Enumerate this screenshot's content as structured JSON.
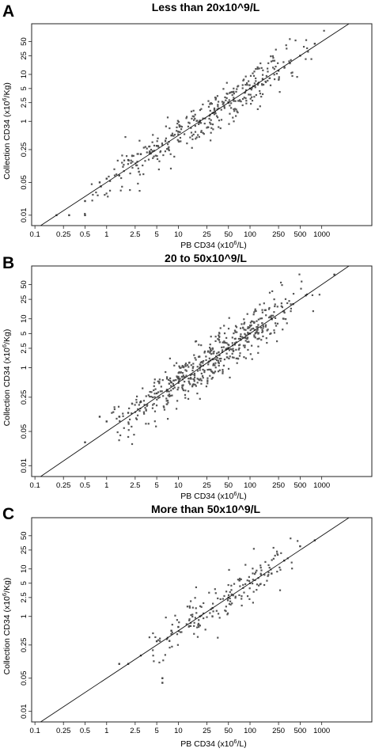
{
  "figure": {
    "panels": [
      {
        "letter": "A",
        "title": "Less than 20x10^9/L"
      },
      {
        "letter": "B",
        "title": "20 to 50x10^9/L"
      },
      {
        "letter": "C",
        "title": "More than 50x10^9/L"
      }
    ]
  },
  "chart_data": [
    {
      "type": "scatter",
      "title": "Less than 20x10^9/L",
      "xlabel": "PB CD34 (x10^6/L)",
      "ylabel": "Collection CD34 (x10^6/Kg)",
      "x_scale": "log",
      "y_scale": "log",
      "xlim": [
        0.09,
        5000
      ],
      "ylim": [
        0.006,
        120
      ],
      "x_ticks": [
        "0.1",
        "0.25",
        "0.5",
        "1",
        "2.5",
        "5",
        "10",
        "25",
        "50",
        "100",
        "250",
        "500",
        "1000"
      ],
      "y_ticks": [
        "0.01",
        "0.05",
        "0.25",
        "1",
        "2.5",
        "5",
        "10",
        "25",
        "50"
      ],
      "fit_line": {
        "intercept": 0.05,
        "slope": 1.0
      },
      "point_summary": {
        "approx_count": 380,
        "points_visible": true
      },
      "points": [
        [
          0.2,
          0.01
        ],
        [
          0.3,
          0.01
        ],
        [
          0.5,
          0.01
        ],
        [
          0.5,
          0.02
        ],
        [
          0.8,
          0.05
        ],
        [
          1,
          0.06
        ],
        [
          1.5,
          0.07
        ],
        [
          2,
          0.15
        ],
        [
          3,
          0.2
        ],
        [
          5,
          0.3
        ],
        [
          8,
          0.5
        ],
        [
          10,
          0.6
        ],
        [
          20,
          1
        ],
        [
          30,
          1.5
        ],
        [
          50,
          2.5
        ],
        [
          100,
          5
        ],
        [
          150,
          8
        ],
        [
          250,
          12
        ],
        [
          500,
          25
        ],
        [
          800,
          45
        ]
      ]
    },
    {
      "type": "scatter",
      "title": "20 to 50x10^9/L",
      "xlabel": "PB CD34 (x10^6/L)",
      "ylabel": "Collection CD34 (x10^6/Kg)",
      "x_scale": "log",
      "y_scale": "log",
      "xlim": [
        0.09,
        5000
      ],
      "ylim": [
        0.006,
        120
      ],
      "x_ticks": [
        "0.1",
        "0.25",
        "0.5",
        "1",
        "2.5",
        "5",
        "10",
        "25",
        "50",
        "100",
        "250",
        "500",
        "1000"
      ],
      "y_ticks": [
        "0.01",
        "0.05",
        "0.25",
        "1",
        "2.5",
        "5",
        "10",
        "25",
        "50"
      ],
      "fit_line": {
        "intercept": 0.05,
        "slope": 1.0
      },
      "point_summary": {
        "approx_count": 550,
        "points_visible": true
      },
      "points": [
        [
          0.5,
          0.03
        ],
        [
          0.8,
          0.1
        ],
        [
          1,
          0.08
        ],
        [
          1.5,
          0.1
        ],
        [
          2,
          0.12
        ],
        [
          3,
          0.2
        ],
        [
          5,
          0.3
        ],
        [
          8,
          0.5
        ],
        [
          10,
          0.6
        ],
        [
          20,
          1
        ],
        [
          30,
          1.5
        ],
        [
          50,
          2.5
        ],
        [
          100,
          5
        ],
        [
          200,
          10
        ],
        [
          400,
          20
        ],
        [
          600,
          30
        ],
        [
          1500,
          80
        ]
      ]
    },
    {
      "type": "scatter",
      "title": "More than 50x10^9/L",
      "xlabel": "PB CD34 (x10^6/L)",
      "ylabel": "Collection CD34 (x10^6/Kg)",
      "x_scale": "log",
      "y_scale": "log",
      "xlim": [
        0.09,
        5000
      ],
      "ylim": [
        0.006,
        120
      ],
      "x_ticks": [
        "0.1",
        "0.25",
        "0.5",
        "1",
        "2.5",
        "5",
        "10",
        "25",
        "50",
        "100",
        "250",
        "500",
        "1000"
      ],
      "y_ticks": [
        "0.01",
        "0.05",
        "0.25",
        "1",
        "2.5",
        "5",
        "10",
        "25",
        "50"
      ],
      "fit_line": {
        "intercept": 0.05,
        "slope": 1.0
      },
      "point_summary": {
        "approx_count": 180,
        "points_visible": true
      },
      "points": [
        [
          1.5,
          0.1
        ],
        [
          2,
          0.1
        ],
        [
          3,
          0.15
        ],
        [
          5,
          0.3
        ],
        [
          6,
          0.04
        ],
        [
          6,
          0.05
        ],
        [
          8,
          0.5
        ],
        [
          10,
          0.6
        ],
        [
          20,
          1
        ],
        [
          30,
          1.5
        ],
        [
          50,
          2.5
        ],
        [
          100,
          5
        ],
        [
          200,
          8
        ],
        [
          300,
          15
        ],
        [
          500,
          30
        ],
        [
          800,
          40
        ]
      ]
    }
  ]
}
